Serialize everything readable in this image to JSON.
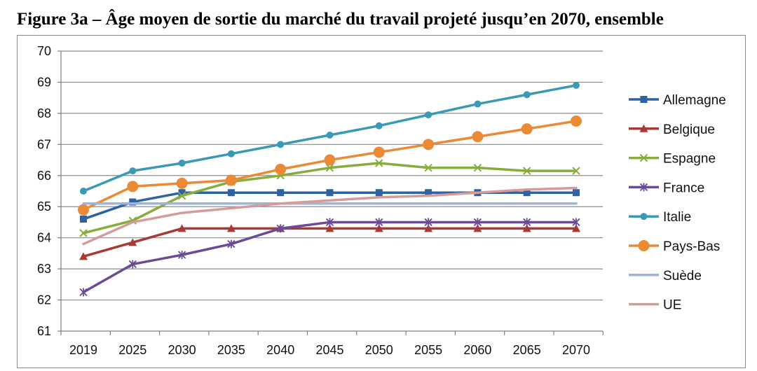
{
  "figure": {
    "title": "Figure 3a – Âge moyen de sortie du marché du travail projeté jusqu’en 2070, ensemble"
  },
  "chart_data": {
    "type": "line",
    "title": "Figure 3a – Âge moyen de sortie du marché du travail projeté jusqu’en 2070, ensemble",
    "xlabel": "",
    "ylabel": "",
    "ylim": [
      61,
      70
    ],
    "yticks": [
      61,
      62,
      63,
      64,
      65,
      66,
      67,
      68,
      69,
      70
    ],
    "grid": true,
    "legend_position": "right",
    "categories": [
      "2019",
      "2025",
      "2030",
      "2035",
      "2040",
      "2045",
      "2050",
      "2055",
      "2060",
      "2065",
      "2070"
    ],
    "series": [
      {
        "name": "Allemagne",
        "color": "#2e62a0",
        "marker": "square",
        "values": [
          64.6,
          65.15,
          65.45,
          65.45,
          65.45,
          65.45,
          65.45,
          65.45,
          65.45,
          65.45,
          65.45
        ]
      },
      {
        "name": "Belgique",
        "color": "#a83a36",
        "marker": "triangle",
        "values": [
          63.4,
          63.85,
          64.3,
          64.3,
          64.3,
          64.3,
          64.3,
          64.3,
          64.3,
          64.3,
          64.3
        ]
      },
      {
        "name": "Espagne",
        "color": "#86ad3e",
        "marker": "x",
        "values": [
          64.15,
          64.55,
          65.35,
          65.8,
          66.0,
          66.25,
          66.4,
          66.25,
          66.25,
          66.15,
          66.15
        ]
      },
      {
        "name": "France",
        "color": "#6b4b93",
        "marker": "star",
        "values": [
          62.25,
          63.15,
          63.45,
          63.8,
          64.3,
          64.5,
          64.5,
          64.5,
          64.5,
          64.5,
          64.5
        ]
      },
      {
        "name": "Italie",
        "color": "#3a9ab5",
        "marker": "circle-small",
        "values": [
          65.5,
          66.15,
          66.4,
          66.7,
          67.0,
          67.3,
          67.6,
          67.95,
          68.3,
          68.6,
          68.9
        ]
      },
      {
        "name": "Pays-Bas",
        "color": "#ea8a35",
        "marker": "circle-large",
        "values": [
          64.9,
          65.65,
          65.75,
          65.85,
          66.2,
          66.5,
          66.75,
          67.0,
          67.25,
          67.5,
          67.75
        ]
      },
      {
        "name": "Suède",
        "color": "#9bb6da",
        "marker": "none",
        "values": [
          65.1,
          65.1,
          65.1,
          65.1,
          65.1,
          65.1,
          65.1,
          65.1,
          65.1,
          65.1,
          65.1
        ]
      },
      {
        "name": "UE",
        "color": "#d79a9b",
        "marker": "none",
        "values": [
          63.8,
          64.5,
          64.8,
          64.95,
          65.1,
          65.2,
          65.3,
          65.35,
          65.45,
          65.55,
          65.6
        ]
      }
    ]
  }
}
